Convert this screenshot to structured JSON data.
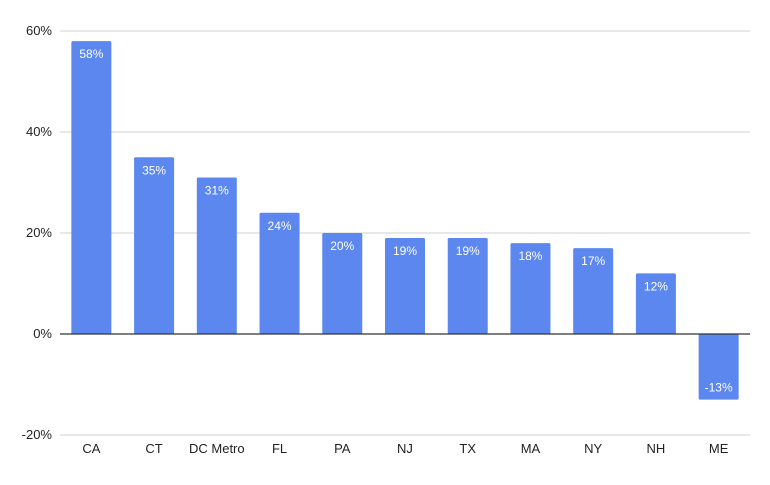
{
  "chart_data": {
    "type": "bar",
    "categories": [
      "CA",
      "CT",
      "DC Metro",
      "FL",
      "PA",
      "NJ",
      "TX",
      "MA",
      "NY",
      "NH",
      "ME"
    ],
    "values": [
      58,
      35,
      31,
      24,
      20,
      19,
      19,
      18,
      17,
      12,
      -13
    ],
    "data_labels": [
      "58%",
      "35%",
      "31%",
      "24%",
      "20%",
      "19%",
      "19%",
      "18%",
      "17%",
      "12%",
      "-13%"
    ],
    "title": "",
    "xlabel": "",
    "ylabel": "",
    "ylim": [
      -20,
      60
    ],
    "yticks": [
      -20,
      0,
      20,
      40,
      60
    ],
    "ytick_labels": [
      "-20%",
      "0%",
      "20%",
      "40%",
      "60%"
    ],
    "grid": true,
    "legend": "none",
    "bar_color": "#5b87ef"
  }
}
